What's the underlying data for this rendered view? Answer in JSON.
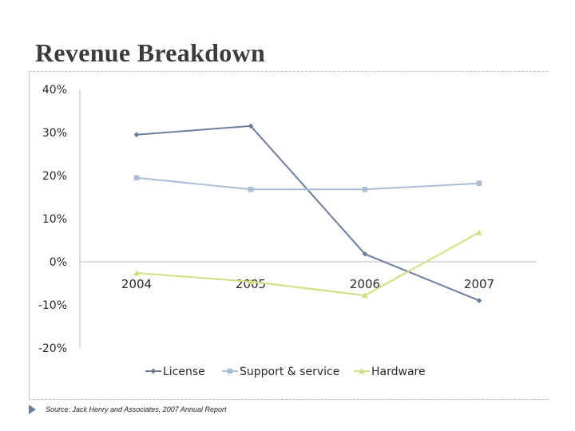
{
  "slide": {
    "title": "Revenue Breakdown",
    "source": "Source: Jack Henry and Associates, 2007 Annual Report"
  },
  "chart_data": {
    "type": "line",
    "title": "",
    "xlabel": "",
    "ylabel": "",
    "categories": [
      "2004",
      "2005",
      "2006",
      "2007"
    ],
    "ylim": [
      -20,
      40
    ],
    "yticks": [
      40,
      30,
      20,
      10,
      0,
      -10,
      -20
    ],
    "ytick_labels": [
      "40%",
      "30%",
      "20%",
      "10%",
      "0%",
      "-10%",
      "-20%"
    ],
    "grid": false,
    "legend_position": "bottom",
    "series": [
      {
        "name": "License",
        "values": [
          29.5,
          31.5,
          1.8,
          -9.0
        ],
        "color": "#6d7f9b",
        "marker": "diamond"
      },
      {
        "name": "Support & service",
        "values": [
          19.5,
          16.8,
          16.8,
          18.2
        ],
        "color": "#a9bfd6",
        "marker": "square"
      },
      {
        "name": "Hardware",
        "values": [
          -2.6,
          -4.6,
          -7.8,
          6.8
        ],
        "color": "#d4dc82",
        "marker": "triangle"
      }
    ]
  }
}
